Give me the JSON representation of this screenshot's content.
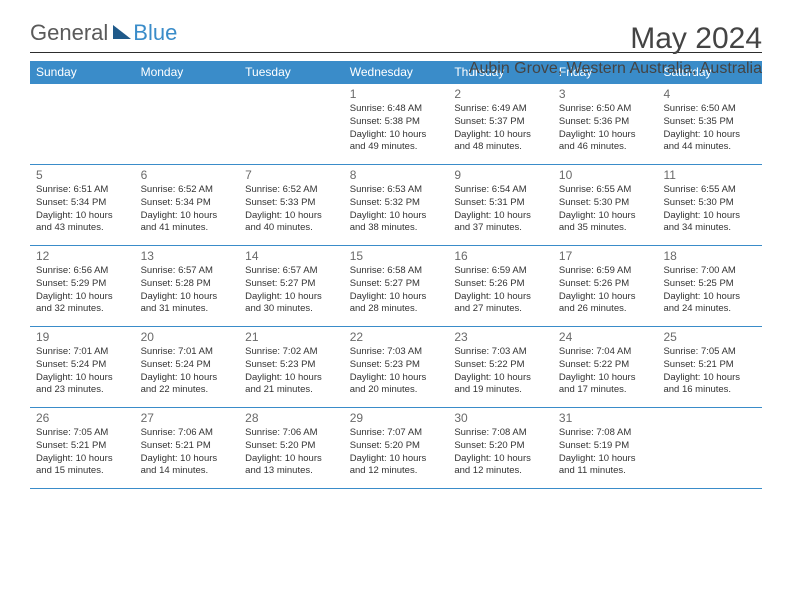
{
  "brand": {
    "left": "General",
    "right": "Blue"
  },
  "title": {
    "month": "May 2024",
    "location": "Aubin Grove, Western Australia, Australia"
  },
  "colors": {
    "header_bg": "#3a8cc9",
    "header_text": "#ffffff",
    "rule": "#3a8cc9",
    "body_text": "#333333",
    "daynum": "#6a6a6a",
    "logo_grey": "#5a5a5a",
    "logo_blue": "#3a8cc9",
    "logo_tri": "#1f5a8a",
    "page_bg": "#ffffff"
  },
  "day_headers": [
    "Sunday",
    "Monday",
    "Tuesday",
    "Wednesday",
    "Thursday",
    "Friday",
    "Saturday"
  ],
  "weeks": [
    [
      null,
      null,
      null,
      {
        "n": "1",
        "sr": "Sunrise: 6:48 AM",
        "ss": "Sunset: 5:38 PM",
        "d1": "Daylight: 10 hours",
        "d2": "and 49 minutes."
      },
      {
        "n": "2",
        "sr": "Sunrise: 6:49 AM",
        "ss": "Sunset: 5:37 PM",
        "d1": "Daylight: 10 hours",
        "d2": "and 48 minutes."
      },
      {
        "n": "3",
        "sr": "Sunrise: 6:50 AM",
        "ss": "Sunset: 5:36 PM",
        "d1": "Daylight: 10 hours",
        "d2": "and 46 minutes."
      },
      {
        "n": "4",
        "sr": "Sunrise: 6:50 AM",
        "ss": "Sunset: 5:35 PM",
        "d1": "Daylight: 10 hours",
        "d2": "and 44 minutes."
      }
    ],
    [
      {
        "n": "5",
        "sr": "Sunrise: 6:51 AM",
        "ss": "Sunset: 5:34 PM",
        "d1": "Daylight: 10 hours",
        "d2": "and 43 minutes."
      },
      {
        "n": "6",
        "sr": "Sunrise: 6:52 AM",
        "ss": "Sunset: 5:34 PM",
        "d1": "Daylight: 10 hours",
        "d2": "and 41 minutes."
      },
      {
        "n": "7",
        "sr": "Sunrise: 6:52 AM",
        "ss": "Sunset: 5:33 PM",
        "d1": "Daylight: 10 hours",
        "d2": "and 40 minutes."
      },
      {
        "n": "8",
        "sr": "Sunrise: 6:53 AM",
        "ss": "Sunset: 5:32 PM",
        "d1": "Daylight: 10 hours",
        "d2": "and 38 minutes."
      },
      {
        "n": "9",
        "sr": "Sunrise: 6:54 AM",
        "ss": "Sunset: 5:31 PM",
        "d1": "Daylight: 10 hours",
        "d2": "and 37 minutes."
      },
      {
        "n": "10",
        "sr": "Sunrise: 6:55 AM",
        "ss": "Sunset: 5:30 PM",
        "d1": "Daylight: 10 hours",
        "d2": "and 35 minutes."
      },
      {
        "n": "11",
        "sr": "Sunrise: 6:55 AM",
        "ss": "Sunset: 5:30 PM",
        "d1": "Daylight: 10 hours",
        "d2": "and 34 minutes."
      }
    ],
    [
      {
        "n": "12",
        "sr": "Sunrise: 6:56 AM",
        "ss": "Sunset: 5:29 PM",
        "d1": "Daylight: 10 hours",
        "d2": "and 32 minutes."
      },
      {
        "n": "13",
        "sr": "Sunrise: 6:57 AM",
        "ss": "Sunset: 5:28 PM",
        "d1": "Daylight: 10 hours",
        "d2": "and 31 minutes."
      },
      {
        "n": "14",
        "sr": "Sunrise: 6:57 AM",
        "ss": "Sunset: 5:27 PM",
        "d1": "Daylight: 10 hours",
        "d2": "and 30 minutes."
      },
      {
        "n": "15",
        "sr": "Sunrise: 6:58 AM",
        "ss": "Sunset: 5:27 PM",
        "d1": "Daylight: 10 hours",
        "d2": "and 28 minutes."
      },
      {
        "n": "16",
        "sr": "Sunrise: 6:59 AM",
        "ss": "Sunset: 5:26 PM",
        "d1": "Daylight: 10 hours",
        "d2": "and 27 minutes."
      },
      {
        "n": "17",
        "sr": "Sunrise: 6:59 AM",
        "ss": "Sunset: 5:26 PM",
        "d1": "Daylight: 10 hours",
        "d2": "and 26 minutes."
      },
      {
        "n": "18",
        "sr": "Sunrise: 7:00 AM",
        "ss": "Sunset: 5:25 PM",
        "d1": "Daylight: 10 hours",
        "d2": "and 24 minutes."
      }
    ],
    [
      {
        "n": "19",
        "sr": "Sunrise: 7:01 AM",
        "ss": "Sunset: 5:24 PM",
        "d1": "Daylight: 10 hours",
        "d2": "and 23 minutes."
      },
      {
        "n": "20",
        "sr": "Sunrise: 7:01 AM",
        "ss": "Sunset: 5:24 PM",
        "d1": "Daylight: 10 hours",
        "d2": "and 22 minutes."
      },
      {
        "n": "21",
        "sr": "Sunrise: 7:02 AM",
        "ss": "Sunset: 5:23 PM",
        "d1": "Daylight: 10 hours",
        "d2": "and 21 minutes."
      },
      {
        "n": "22",
        "sr": "Sunrise: 7:03 AM",
        "ss": "Sunset: 5:23 PM",
        "d1": "Daylight: 10 hours",
        "d2": "and 20 minutes."
      },
      {
        "n": "23",
        "sr": "Sunrise: 7:03 AM",
        "ss": "Sunset: 5:22 PM",
        "d1": "Daylight: 10 hours",
        "d2": "and 19 minutes."
      },
      {
        "n": "24",
        "sr": "Sunrise: 7:04 AM",
        "ss": "Sunset: 5:22 PM",
        "d1": "Daylight: 10 hours",
        "d2": "and 17 minutes."
      },
      {
        "n": "25",
        "sr": "Sunrise: 7:05 AM",
        "ss": "Sunset: 5:21 PM",
        "d1": "Daylight: 10 hours",
        "d2": "and 16 minutes."
      }
    ],
    [
      {
        "n": "26",
        "sr": "Sunrise: 7:05 AM",
        "ss": "Sunset: 5:21 PM",
        "d1": "Daylight: 10 hours",
        "d2": "and 15 minutes."
      },
      {
        "n": "27",
        "sr": "Sunrise: 7:06 AM",
        "ss": "Sunset: 5:21 PM",
        "d1": "Daylight: 10 hours",
        "d2": "and 14 minutes."
      },
      {
        "n": "28",
        "sr": "Sunrise: 7:06 AM",
        "ss": "Sunset: 5:20 PM",
        "d1": "Daylight: 10 hours",
        "d2": "and 13 minutes."
      },
      {
        "n": "29",
        "sr": "Sunrise: 7:07 AM",
        "ss": "Sunset: 5:20 PM",
        "d1": "Daylight: 10 hours",
        "d2": "and 12 minutes."
      },
      {
        "n": "30",
        "sr": "Sunrise: 7:08 AM",
        "ss": "Sunset: 5:20 PM",
        "d1": "Daylight: 10 hours",
        "d2": "and 12 minutes."
      },
      {
        "n": "31",
        "sr": "Sunrise: 7:08 AM",
        "ss": "Sunset: 5:19 PM",
        "d1": "Daylight: 10 hours",
        "d2": "and 11 minutes."
      },
      null
    ]
  ]
}
